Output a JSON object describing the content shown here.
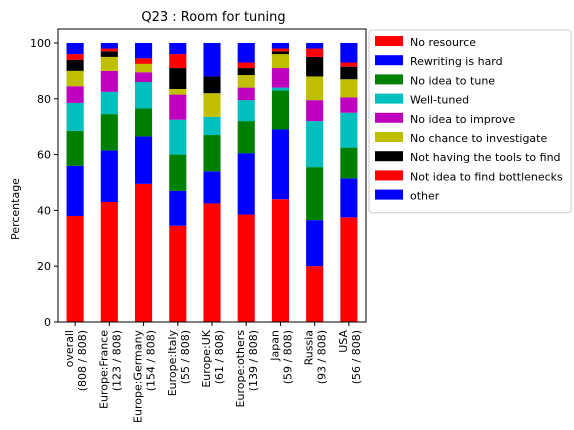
{
  "chart_data": {
    "type": "bar",
    "stacked": true,
    "title": "Q23 : Room for tuning",
    "xlabel": "",
    "ylabel": "Percentage",
    "ylim": [
      0,
      105
    ],
    "yticks": [
      0,
      20,
      40,
      60,
      80,
      100
    ],
    "legend_position": "outside-right",
    "categories": [
      [
        "overall",
        "(808 / 808)"
      ],
      [
        "Europe:France",
        "(123 / 808)"
      ],
      [
        "Europe:Germany",
        "(154 / 808)"
      ],
      [
        "Europe:Italy",
        "(55 / 808)"
      ],
      [
        "Europe:UK",
        "(61 / 808)"
      ],
      [
        "Europe:others",
        "(139 / 808)"
      ],
      [
        "Japan",
        "(59 / 808)"
      ],
      [
        "Russia",
        "(93 / 808)"
      ],
      [
        "USA",
        "(56 / 808)"
      ]
    ],
    "series": [
      {
        "name": "No resource",
        "color": "#ff0000",
        "values": [
          38,
          43,
          49.5,
          34.5,
          42.5,
          38.5,
          44,
          20,
          37.5
        ]
      },
      {
        "name": "Rewriting is hard",
        "color": "#0000ff",
        "values": [
          18,
          18.5,
          17,
          12.5,
          11.5,
          22,
          25,
          16.5,
          14
        ]
      },
      {
        "name": "No idea to tune",
        "color": "#008000",
        "values": [
          12.5,
          13,
          10,
          13,
          13,
          11.5,
          14,
          19,
          11
        ]
      },
      {
        "name": "Well-tuned",
        "color": "#00bfbf",
        "values": [
          10,
          8,
          9.5,
          12.5,
          6.5,
          7.5,
          1,
          16.5,
          12.5
        ]
      },
      {
        "name": "No idea to improve",
        "color": "#bf00bf",
        "values": [
          6,
          7.5,
          3.5,
          9,
          0,
          4.5,
          7,
          7.5,
          5.5
        ]
      },
      {
        "name": "No chance to investigate",
        "color": "#bfbf00",
        "values": [
          5.5,
          5,
          3,
          2,
          8.5,
          4.5,
          5,
          8.5,
          6.5
        ]
      },
      {
        "name": "Not having the tools to find",
        "color": "#000000",
        "values": [
          4,
          2,
          0,
          7.5,
          6,
          2.5,
          1,
          7,
          4.5
        ]
      },
      {
        "name": "Not idea to find bottlenecks",
        "color": "#ff0000",
        "values": [
          2,
          1,
          2,
          5,
          0,
          2,
          1,
          3,
          1.5
        ]
      },
      {
        "name": "other",
        "color": "#0000ff",
        "values": [
          4,
          2,
          5.5,
          4,
          12,
          7,
          2,
          2,
          7
        ]
      }
    ]
  }
}
